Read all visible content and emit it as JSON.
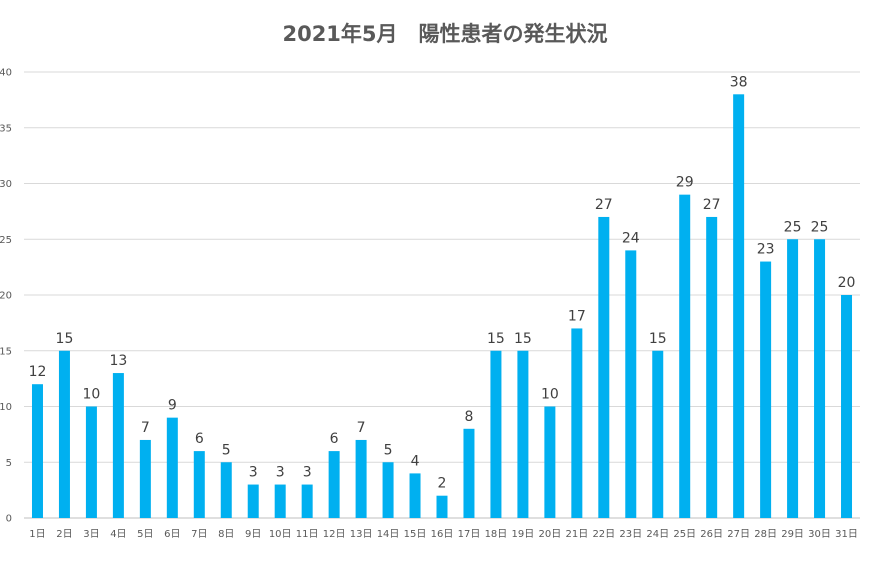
{
  "chart_data": {
    "type": "bar",
    "title": "2021年5月　陽性患者の発生状況",
    "xlabel": "",
    "ylabel": "",
    "ylim": [
      0,
      40
    ],
    "yticks": [
      0,
      5,
      10,
      15,
      20,
      25,
      30,
      35,
      40
    ],
    "grid": true,
    "legend": "none",
    "bar_color": "#00B0F0",
    "categories": [
      "1日",
      "2日",
      "3日",
      "4日",
      "5日",
      "6日",
      "7日",
      "8日",
      "9日",
      "10日",
      "11日",
      "12日",
      "13日",
      "14日",
      "15日",
      "16日",
      "17日",
      "18日",
      "19日",
      "20日",
      "21日",
      "22日",
      "23日",
      "24日",
      "25日",
      "26日",
      "27日",
      "28日",
      "29日",
      "30日",
      "31日"
    ],
    "values": [
      12,
      15,
      10,
      13,
      7,
      9,
      6,
      5,
      3,
      3,
      3,
      6,
      7,
      5,
      4,
      2,
      8,
      15,
      15,
      10,
      17,
      27,
      24,
      15,
      29,
      27,
      38,
      23,
      25,
      25,
      20
    ]
  }
}
